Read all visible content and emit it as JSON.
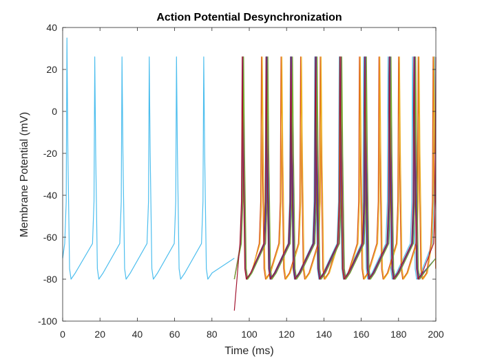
{
  "chart_data": {
    "type": "line",
    "title": "Action Potential Desynchronization",
    "xlabel": "Time (ms)",
    "ylabel": "Membrane Potential (mV)",
    "xlim": [
      0,
      200
    ],
    "ylim": [
      -100,
      40
    ],
    "xticks": [
      0,
      20,
      40,
      60,
      80,
      100,
      120,
      140,
      160,
      180,
      200
    ],
    "yticks": [
      -100,
      -80,
      -60,
      -40,
      -20,
      0,
      20,
      40
    ],
    "grid": false,
    "legend": "none",
    "box": true,
    "spike_shape": {
      "peak_mv": 26,
      "trough_mv": -80,
      "rise_threshold_mv": -63
    },
    "series": [
      {
        "color": "#4DBEEE",
        "x_start": 0,
        "x_end": 92,
        "start_value": -70,
        "first_peak_value": 35,
        "spike_times": [
          2.3,
          17.2,
          31.8,
          46.4,
          61.0,
          75.6
        ]
      },
      {
        "color": "#4DBEEE",
        "x_start": 92,
        "x_end": 200,
        "spike_times": [
          96.4,
          108.9,
          122.0,
          135.1,
          148.2,
          161.3,
          174.4,
          187.5,
          199.3
        ]
      },
      {
        "color": "#0072BD",
        "x_start": 92,
        "x_end": 200,
        "spike_times": [
          96.6,
          109.3,
          122.5,
          135.7,
          148.9,
          162.1,
          175.3,
          188.5
        ]
      },
      {
        "color": "#D95319",
        "x_start": 92,
        "x_end": 200,
        "spike_times": [
          96.8,
          106.5,
          117.0,
          127.5,
          138.0,
          148.5,
          159.0,
          169.5,
          180.0,
          190.5,
          198.5
        ]
      },
      {
        "color": "#EDB120",
        "x_start": 92,
        "x_end": 200,
        "spike_times": [
          96.5,
          107.0,
          117.5,
          128.0,
          138.5,
          149.0,
          159.5,
          170.0,
          180.5,
          191.0,
          199.0
        ]
      },
      {
        "color": "#7E2F8E",
        "x_start": 92,
        "x_end": 200,
        "spike_times": [
          96.7,
          109.6,
          122.8,
          136.0,
          149.2,
          162.4,
          175.6,
          188.8
        ]
      },
      {
        "color": "#77AC30",
        "x_start": 92,
        "x_end": 200,
        "spike_times": [
          97.0,
          110.0,
          123.2,
          136.4,
          149.6,
          162.8,
          176.0,
          189.2
        ]
      },
      {
        "color": "#A2142F",
        "x_start": 92,
        "x_end": 200,
        "trough_value": -95,
        "spike_times": [
          96.2,
          109.0,
          122.2,
          135.4,
          148.6,
          161.8,
          175.0,
          188.2,
          200.0
        ]
      }
    ]
  }
}
